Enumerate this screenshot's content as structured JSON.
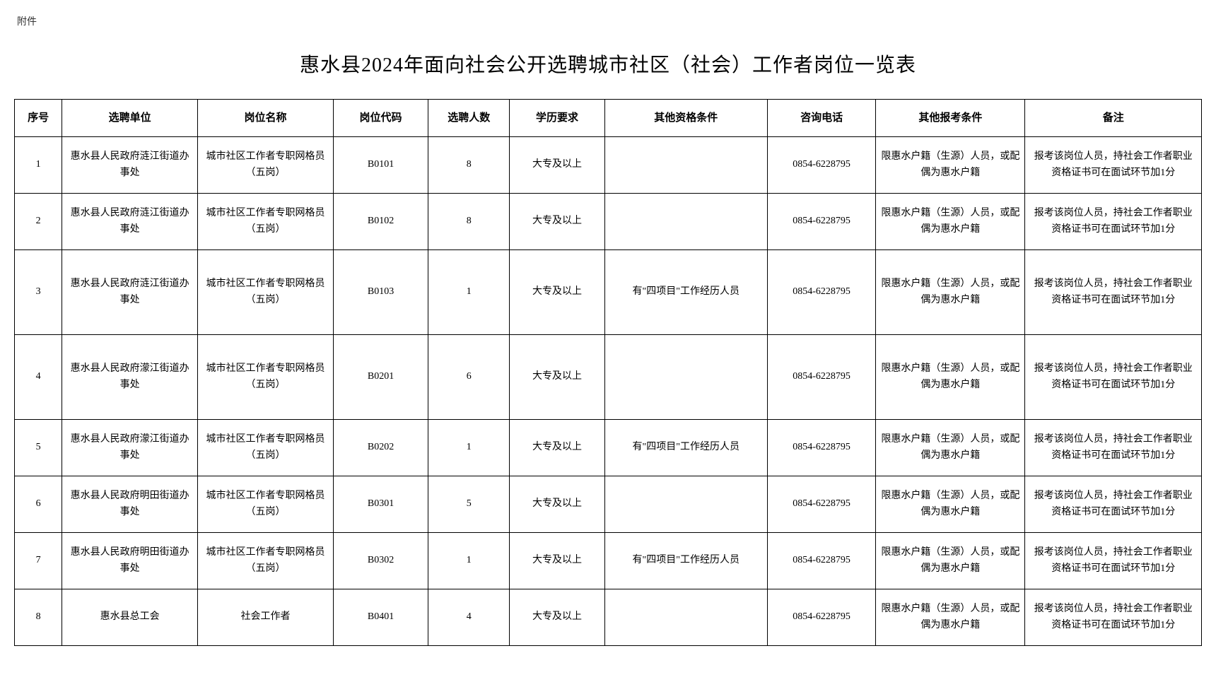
{
  "attachment_label": "附件",
  "title": "惠水县2024年面向社会公开选聘城市社区（社会）工作者岗位一览表",
  "columns": [
    "序号",
    "选聘单位",
    "岗位名称",
    "岗位代码",
    "选聘人数",
    "学历要求",
    "其他资格条件",
    "咨询电话",
    "其他报考条件",
    "备注"
  ],
  "rows": [
    {
      "seq": "1",
      "unit": "惠水县人民政府涟江街道办事处",
      "position": "城市社区工作者专职网格员（五岗）",
      "code": "B0101",
      "count": "8",
      "edu": "大专及以上",
      "qual": "",
      "phone": "0854-6228795",
      "cond": "限惠水户籍（生源）人员，或配偶为惠水户籍",
      "remark": "报考该岗位人员，持社会工作者职业资格证书可在面试环节加1分"
    },
    {
      "seq": "2",
      "unit": "惠水县人民政府涟江街道办事处",
      "position": "城市社区工作者专职网格员（五岗）",
      "code": "B0102",
      "count": "8",
      "edu": "大专及以上",
      "qual": "",
      "phone": "0854-6228795",
      "cond": "限惠水户籍（生源）人员，或配偶为惠水户籍",
      "remark": "报考该岗位人员，持社会工作者职业资格证书可在面试环节加1分"
    },
    {
      "seq": "3",
      "unit": "惠水县人民政府涟江街道办事处",
      "position": "城市社区工作者专职网格员（五岗）",
      "code": "B0103",
      "count": "1",
      "edu": "大专及以上",
      "qual": "有\"四项目\"工作经历人员",
      "phone": "0854-6228795",
      "cond": "限惠水户籍（生源）人员，或配偶为惠水户籍",
      "remark": "报考该岗位人员，持社会工作者职业资格证书可在面试环节加1分"
    },
    {
      "seq": "4",
      "unit": "惠水县人民政府濛江街道办事处",
      "position": "城市社区工作者专职网格员（五岗）",
      "code": "B0201",
      "count": "6",
      "edu": "大专及以上",
      "qual": "",
      "phone": "0854-6228795",
      "cond": "限惠水户籍（生源）人员，或配偶为惠水户籍",
      "remark": "报考该岗位人员，持社会工作者职业资格证书可在面试环节加1分"
    },
    {
      "seq": "5",
      "unit": "惠水县人民政府濛江街道办事处",
      "position": "城市社区工作者专职网格员（五岗）",
      "code": "B0202",
      "count": "1",
      "edu": "大专及以上",
      "qual": "有\"四项目\"工作经历人员",
      "phone": "0854-6228795",
      "cond": "限惠水户籍（生源）人员，或配偶为惠水户籍",
      "remark": "报考该岗位人员，持社会工作者职业资格证书可在面试环节加1分"
    },
    {
      "seq": "6",
      "unit": "惠水县人民政府明田街道办事处",
      "position": "城市社区工作者专职网格员（五岗）",
      "code": "B0301",
      "count": "5",
      "edu": "大专及以上",
      "qual": "",
      "phone": "0854-6228795",
      "cond": "限惠水户籍（生源）人员，或配偶为惠水户籍",
      "remark": "报考该岗位人员，持社会工作者职业资格证书可在面试环节加1分"
    },
    {
      "seq": "7",
      "unit": "惠水县人民政府明田街道办事处",
      "position": "城市社区工作者专职网格员（五岗）",
      "code": "B0302",
      "count": "1",
      "edu": "大专及以上",
      "qual": "有\"四项目\"工作经历人员",
      "phone": "0854-6228795",
      "cond": "限惠水户籍（生源）人员，或配偶为惠水户籍",
      "remark": "报考该岗位人员，持社会工作者职业资格证书可在面试环节加1分"
    },
    {
      "seq": "8",
      "unit": "惠水县总工会",
      "position": "社会工作者",
      "code": "B0401",
      "count": "4",
      "edu": "大专及以上",
      "qual": "",
      "phone": "0854-6228795",
      "cond": "限惠水户籍（生源）人员，或配偶为惠水户籍",
      "remark": "报考该岗位人员，持社会工作者职业资格证书可在面试环节加1分"
    }
  ],
  "row_tall": [
    false,
    false,
    true,
    true,
    false,
    false,
    false,
    false
  ]
}
